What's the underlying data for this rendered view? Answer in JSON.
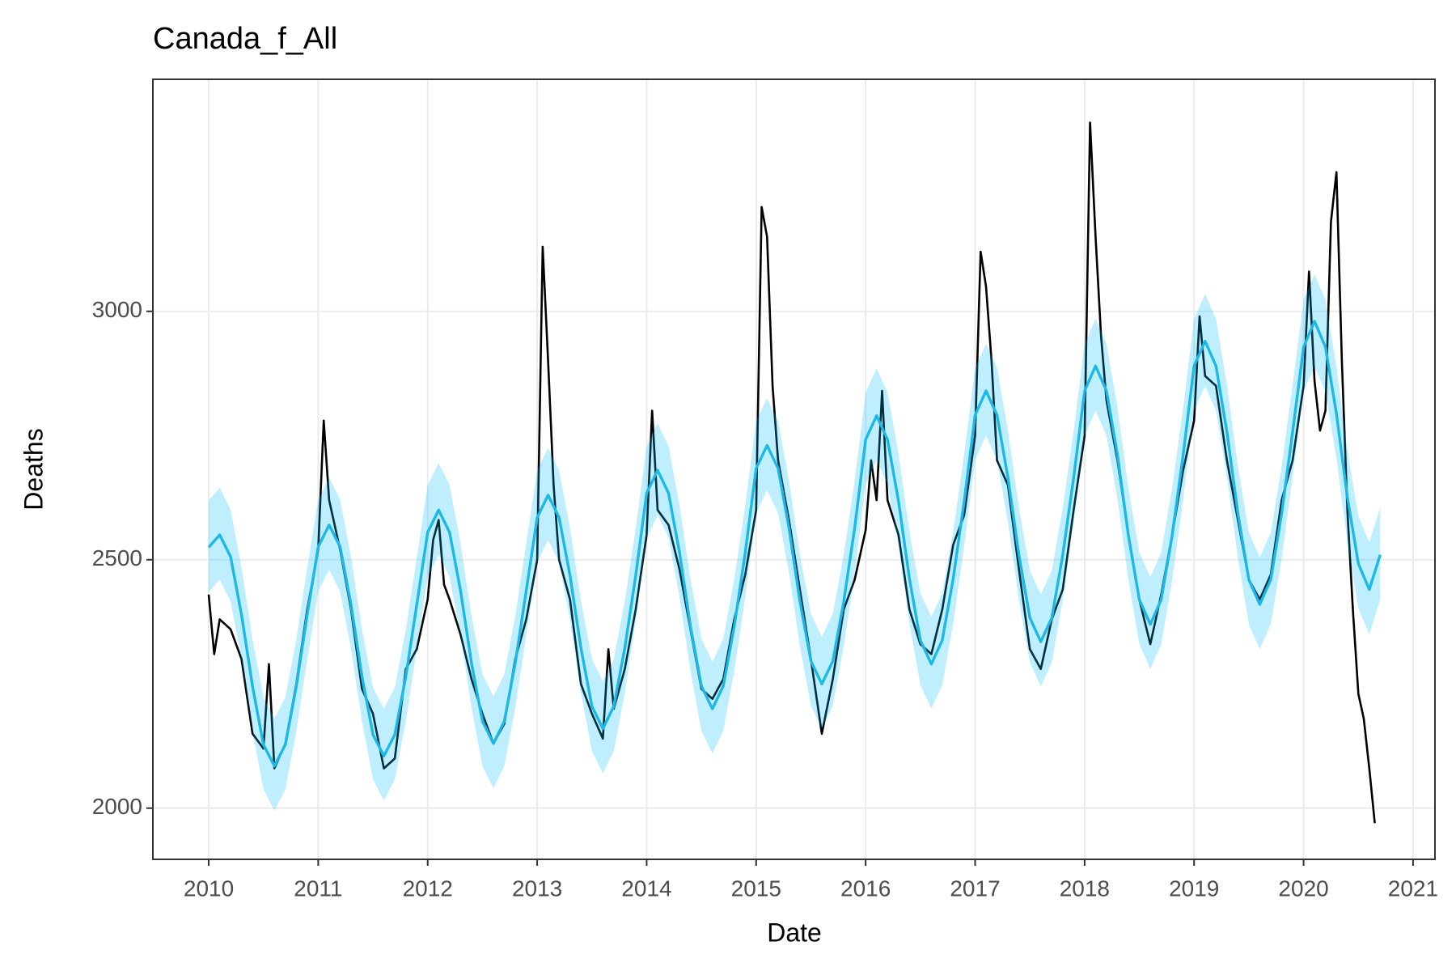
{
  "chart_data": {
    "type": "line",
    "title": "Canada_f_All",
    "x_label": "Date",
    "y_label": "Deaths",
    "xlim": [
      2009.49,
      2021.2
    ],
    "ylim": [
      1897,
      3467
    ],
    "xticks": [
      2010,
      2011,
      2012,
      2013,
      2014,
      2015,
      2016,
      2017,
      2018,
      2019,
      2020,
      2021
    ],
    "yticks": [
      2000,
      2500,
      3000
    ],
    "grid": true,
    "x": [
      2010,
      2010.1,
      2010.2,
      2010.3,
      2010.4,
      2010.5,
      2010.6,
      2010.7,
      2010.8,
      2010.9,
      2011,
      2011.1,
      2011.2,
      2011.3,
      2011.4,
      2011.5,
      2011.6,
      2011.7,
      2011.8,
      2011.9,
      2012,
      2012.1,
      2012.2,
      2012.3,
      2012.4,
      2012.5,
      2012.6,
      2012.7,
      2012.8,
      2012.9,
      2013,
      2013.1,
      2013.2,
      2013.3,
      2013.4,
      2013.5,
      2013.6,
      2013.7,
      2013.8,
      2013.9,
      2014,
      2014.1,
      2014.2,
      2014.3,
      2014.4,
      2014.5,
      2014.6,
      2014.7,
      2014.8,
      2014.9,
      2015,
      2015.1,
      2015.2,
      2015.3,
      2015.4,
      2015.5,
      2015.6,
      2015.7,
      2015.8,
      2015.9,
      2016,
      2016.1,
      2016.2,
      2016.3,
      2016.4,
      2016.5,
      2016.6,
      2016.7,
      2016.8,
      2016.9,
      2017,
      2017.1,
      2017.2,
      2017.3,
      2017.4,
      2017.5,
      2017.6,
      2017.7,
      2017.8,
      2017.9,
      2018,
      2018.1,
      2018.2,
      2018.3,
      2018.4,
      2018.5,
      2018.6,
      2018.7,
      2018.8,
      2018.9,
      2019,
      2019.1,
      2019.2,
      2019.3,
      2019.4,
      2019.5,
      2019.6,
      2019.7,
      2019.8,
      2019.9,
      2020,
      2020.1,
      2020.2,
      2020.3,
      2020.4,
      2020.5,
      2020.6,
      2020.7
    ],
    "band": {
      "color": "#00bfff",
      "opacity": 0.25,
      "upper": [
        2620,
        2645,
        2601,
        2484,
        2340,
        2223,
        2180,
        2223,
        2340,
        2484,
        2621,
        2665,
        2621,
        2504,
        2360,
        2243,
        2200,
        2243,
        2360,
        2504,
        2650,
        2695,
        2650,
        2533,
        2387,
        2270,
        2225,
        2270,
        2387,
        2533,
        2680,
        2725,
        2680,
        2563,
        2417,
        2300,
        2255,
        2300,
        2417,
        2563,
        2729,
        2775,
        2729,
        2609,
        2461,
        2341,
        2295,
        2341,
        2461,
        2609,
        2779,
        2825,
        2779,
        2659,
        2511,
        2391,
        2345,
        2391,
        2511,
        2659,
        2837,
        2885,
        2837,
        2713,
        2557,
        2433,
        2385,
        2433,
        2557,
        2713,
        2886,
        2935,
        2886,
        2760,
        2604,
        2478,
        2430,
        2478,
        2604,
        2760,
        2935,
        2985,
        2935,
        2806,
        2644,
        2515,
        2465,
        2515,
        2644,
        2806,
        2985,
        3035,
        2985,
        2852,
        2688,
        2555,
        2505,
        2555,
        2688,
        2852,
        3023,
        3075,
        3023,
        2889,
        2721,
        2587,
        2535,
        2605
      ],
      "lower": [
        2435,
        2460,
        2416,
        2299,
        2155,
        2038,
        1995,
        2038,
        2155,
        2299,
        2436,
        2480,
        2436,
        2319,
        2175,
        2058,
        2015,
        2058,
        2175,
        2319,
        2465,
        2510,
        2465,
        2348,
        2202,
        2085,
        2040,
        2085,
        2202,
        2348,
        2495,
        2540,
        2495,
        2378,
        2232,
        2115,
        2070,
        2115,
        2232,
        2378,
        2544,
        2590,
        2544,
        2424,
        2276,
        2156,
        2110,
        2156,
        2276,
        2424,
        2594,
        2640,
        2594,
        2474,
        2326,
        2206,
        2160,
        2206,
        2326,
        2474,
        2652,
        2700,
        2652,
        2528,
        2372,
        2248,
        2200,
        2248,
        2372,
        2528,
        2701,
        2750,
        2701,
        2575,
        2419,
        2293,
        2245,
        2293,
        2419,
        2575,
        2750,
        2800,
        2750,
        2621,
        2459,
        2330,
        2280,
        2330,
        2459,
        2621,
        2800,
        2850,
        2800,
        2667,
        2503,
        2370,
        2320,
        2370,
        2503,
        2667,
        2838,
        2890,
        2838,
        2704,
        2536,
        2402,
        2350,
        2420
      ]
    },
    "series": [
      {
        "color": "#000000",
        "x": [
          2010,
          2010.05,
          2010.1,
          2010.2,
          2010.3,
          2010.4,
          2010.5,
          2010.55,
          2010.6,
          2010.7,
          2010.8,
          2010.9,
          2011,
          2011.05,
          2011.1,
          2011.2,
          2011.3,
          2011.4,
          2011.5,
          2011.6,
          2011.7,
          2011.8,
          2011.9,
          2012,
          2012.05,
          2012.1,
          2012.15,
          2012.2,
          2012.3,
          2012.4,
          2012.5,
          2012.6,
          2012.7,
          2012.8,
          2012.9,
          2013,
          2013.05,
          2013.1,
          2013.15,
          2013.2,
          2013.3,
          2013.4,
          2013.5,
          2013.6,
          2013.65,
          2013.7,
          2013.8,
          2013.9,
          2014,
          2014.05,
          2014.1,
          2014.2,
          2014.3,
          2014.4,
          2014.5,
          2014.6,
          2014.7,
          2014.8,
          2014.9,
          2015,
          2015.05,
          2015.1,
          2015.15,
          2015.2,
          2015.3,
          2015.4,
          2015.5,
          2015.6,
          2015.7,
          2015.8,
          2015.9,
          2016,
          2016.05,
          2016.1,
          2016.15,
          2016.2,
          2016.3,
          2016.4,
          2016.5,
          2016.6,
          2016.7,
          2016.8,
          2016.9,
          2017,
          2017.05,
          2017.1,
          2017.15,
          2017.2,
          2017.3,
          2017.4,
          2017.5,
          2017.6,
          2017.7,
          2017.8,
          2017.9,
          2018,
          2018.05,
          2018.1,
          2018.15,
          2018.2,
          2018.3,
          2018.4,
          2018.5,
          2018.6,
          2018.7,
          2018.8,
          2018.9,
          2019,
          2019.05,
          2019.1,
          2019.2,
          2019.3,
          2019.4,
          2019.5,
          2019.6,
          2019.7,
          2019.8,
          2019.9,
          2020,
          2020.05,
          2020.1,
          2020.15,
          2020.2,
          2020.25,
          2020.3,
          2020.35,
          2020.4,
          2020.45,
          2020.5,
          2020.55,
          2020.6,
          2020.65
        ],
        "values": [
          2430,
          2310,
          2380,
          2360,
          2300,
          2150,
          2120,
          2290,
          2080,
          2130,
          2250,
          2400,
          2520,
          2780,
          2620,
          2520,
          2400,
          2240,
          2190,
          2080,
          2100,
          2280,
          2320,
          2420,
          2540,
          2580,
          2450,
          2420,
          2350,
          2260,
          2190,
          2130,
          2170,
          2300,
          2380,
          2500,
          3130,
          2900,
          2650,
          2500,
          2420,
          2250,
          2190,
          2140,
          2320,
          2200,
          2280,
          2400,
          2550,
          2800,
          2600,
          2570,
          2480,
          2360,
          2240,
          2220,
          2260,
          2380,
          2470,
          2600,
          3210,
          3150,
          2850,
          2700,
          2580,
          2440,
          2300,
          2150,
          2260,
          2400,
          2460,
          2560,
          2700,
          2620,
          2840,
          2620,
          2550,
          2400,
          2330,
          2310,
          2400,
          2530,
          2590,
          2750,
          3120,
          3050,
          2900,
          2700,
          2650,
          2480,
          2320,
          2280,
          2380,
          2440,
          2600,
          2750,
          3380,
          3150,
          2950,
          2820,
          2700,
          2550,
          2420,
          2330,
          2430,
          2550,
          2680,
          2780,
          2990,
          2870,
          2850,
          2700,
          2580,
          2460,
          2420,
          2470,
          2620,
          2700,
          2850,
          3080,
          2860,
          2760,
          2800,
          3180,
          3280,
          2900,
          2600,
          2400,
          2230,
          2180,
          2080,
          1970
        ]
      },
      {
        "color": "#1cb8e6",
        "values": [
          2525,
          2550,
          2506,
          2389,
          2245,
          2128,
          2085,
          2128,
          2245,
          2389,
          2526,
          2570,
          2526,
          2409,
          2265,
          2148,
          2105,
          2148,
          2265,
          2409,
          2555,
          2600,
          2555,
          2438,
          2292,
          2175,
          2130,
          2175,
          2292,
          2438,
          2585,
          2630,
          2585,
          2468,
          2322,
          2205,
          2160,
          2205,
          2322,
          2468,
          2634,
          2680,
          2634,
          2514,
          2366,
          2246,
          2200,
          2246,
          2366,
          2514,
          2684,
          2730,
          2684,
          2564,
          2416,
          2296,
          2250,
          2296,
          2416,
          2564,
          2742,
          2790,
          2742,
          2618,
          2462,
          2338,
          2290,
          2338,
          2462,
          2618,
          2791,
          2840,
          2791,
          2665,
          2509,
          2383,
          2335,
          2383,
          2509,
          2665,
          2840,
          2890,
          2840,
          2711,
          2549,
          2420,
          2370,
          2420,
          2549,
          2711,
          2890,
          2940,
          2890,
          2757,
          2593,
          2460,
          2410,
          2460,
          2593,
          2757,
          2928,
          2980,
          2928,
          2794,
          2626,
          2492,
          2440,
          2510
        ]
      }
    ]
  }
}
